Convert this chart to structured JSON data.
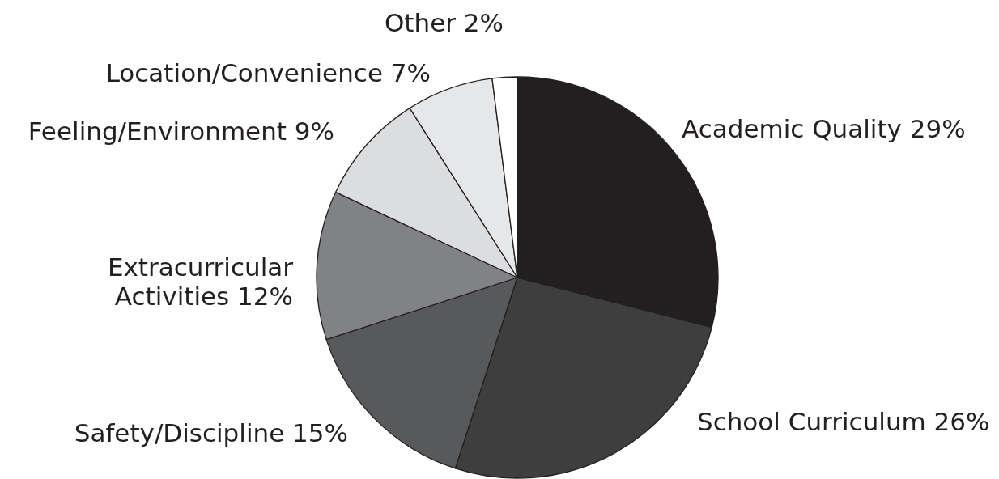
{
  "chart_data": {
    "type": "pie",
    "categories": [
      "Academic Quality",
      "School Curriculum",
      "Safety/Discipline",
      "Extracurricular Activities",
      "Feeling/Environment",
      "Location/Convenience",
      "Other"
    ],
    "values": [
      29,
      26,
      15,
      12,
      9,
      7,
      2
    ],
    "value_labels": [
      "29%",
      "26%",
      "15%",
      "12%",
      "9%",
      "7%",
      "2%"
    ],
    "colors": [
      "#231f20",
      "#3e3e3f",
      "#58595b",
      "#808285",
      "#dcdddf",
      "#e6e7e8",
      "#ffffff"
    ]
  }
}
